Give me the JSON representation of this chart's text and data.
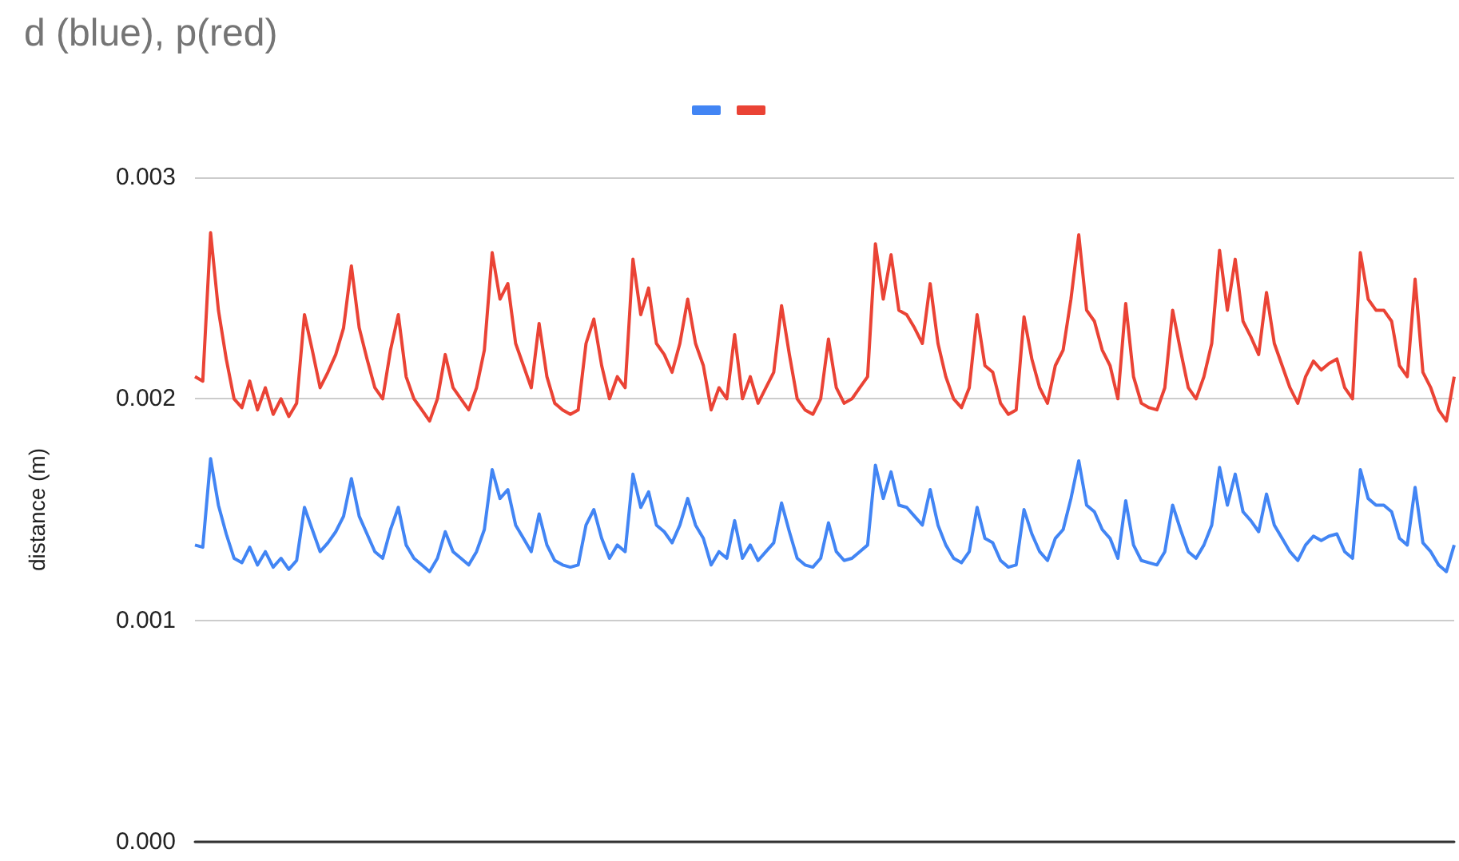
{
  "chart_data": {
    "type": "line",
    "title": "d (blue), p(red)",
    "ylabel": "distance (m)",
    "categories": [
      null,
      null,
      null,
      null,
      null,
      null,
      null,
      null,
      null,
      null,
      null,
      null,
      null,
      null,
      null,
      null,
      null,
      null,
      null,
      null,
      null,
      null,
      null,
      null,
      null,
      null,
      null,
      null,
      null,
      null,
      null,
      null,
      null,
      null,
      null,
      null,
      null,
      null,
      null,
      null,
      null,
      null,
      null,
      null,
      null,
      null,
      null,
      null,
      null,
      null,
      null,
      null,
      null,
      null,
      null,
      null,
      null,
      null,
      null,
      null,
      null,
      null,
      null,
      null,
      null,
      null,
      null,
      null,
      null,
      null,
      null,
      null,
      null,
      null,
      null,
      null,
      null,
      null,
      null,
      null,
      null,
      null,
      null,
      null,
      null,
      null,
      null,
      null,
      null,
      null,
      null,
      null,
      null,
      null,
      null,
      null,
      null,
      null,
      null,
      null,
      null,
      null,
      null,
      null,
      null,
      null,
      null,
      null,
      null,
      null,
      null,
      null,
      null,
      null,
      null,
      null,
      null,
      null,
      null,
      null,
      null,
      null,
      null,
      null,
      null,
      null,
      null,
      null,
      null,
      null,
      null,
      null,
      null,
      null,
      null,
      null,
      null,
      null,
      null,
      null,
      null,
      null,
      null,
      null,
      null,
      null,
      null,
      null,
      null,
      null,
      null,
      null,
      null,
      null,
      null,
      null,
      null,
      null,
      null,
      null,
      null,
      null
    ],
    "series": [
      {
        "color": "#4285f4",
        "values": [
          0.00134,
          0.00133,
          0.00173,
          0.00152,
          0.00139,
          0.00128,
          0.00126,
          0.00133,
          0.00125,
          0.00131,
          0.00124,
          0.00128,
          0.00123,
          0.00127,
          0.00151,
          0.00141,
          0.00131,
          0.00135,
          0.0014,
          0.00147,
          0.00164,
          0.00147,
          0.00139,
          0.00131,
          0.00128,
          0.00141,
          0.00151,
          0.00134,
          0.00128,
          0.00125,
          0.00122,
          0.00128,
          0.0014,
          0.00131,
          0.00128,
          0.00125,
          0.00131,
          0.00141,
          0.00168,
          0.00155,
          0.00159,
          0.00143,
          0.00137,
          0.00131,
          0.00148,
          0.00134,
          0.00127,
          0.00125,
          0.00124,
          0.00125,
          0.00143,
          0.0015,
          0.00137,
          0.00128,
          0.00134,
          0.00131,
          0.00166,
          0.00151,
          0.00158,
          0.00143,
          0.0014,
          0.00135,
          0.00143,
          0.00155,
          0.00143,
          0.00137,
          0.00125,
          0.00131,
          0.00128,
          0.00145,
          0.00128,
          0.00134,
          0.00127,
          0.00131,
          0.00135,
          0.00153,
          0.0014,
          0.00128,
          0.00125,
          0.00124,
          0.00128,
          0.00144,
          0.00131,
          0.00127,
          0.00128,
          0.00131,
          0.00134,
          0.0017,
          0.00155,
          0.00167,
          0.00152,
          0.00151,
          0.00147,
          0.00143,
          0.00159,
          0.00143,
          0.00134,
          0.00128,
          0.00126,
          0.00131,
          0.00151,
          0.00137,
          0.00135,
          0.00127,
          0.00124,
          0.00125,
          0.0015,
          0.00139,
          0.00131,
          0.00127,
          0.00137,
          0.00141,
          0.00155,
          0.00172,
          0.00152,
          0.00149,
          0.00141,
          0.00137,
          0.00128,
          0.00154,
          0.00134,
          0.00127,
          0.00126,
          0.00125,
          0.00131,
          0.00152,
          0.00141,
          0.00131,
          0.00128,
          0.00134,
          0.00143,
          0.00169,
          0.00152,
          0.00166,
          0.00149,
          0.00145,
          0.0014,
          0.00157,
          0.00143,
          0.00137,
          0.00131,
          0.00127,
          0.00134,
          0.00138,
          0.00136,
          0.00138,
          0.00139,
          0.00131,
          0.00128,
          0.00168,
          0.00155,
          0.00152,
          0.00152,
          0.00149,
          0.00137,
          0.00134,
          0.0016,
          0.00135,
          0.00131,
          0.00125,
          0.00122,
          0.00134
        ]
      },
      {
        "color": "#ea4335",
        "values": [
          0.0021,
          0.00208,
          0.00275,
          0.0024,
          0.00218,
          0.002,
          0.00196,
          0.00208,
          0.00195,
          0.00205,
          0.00193,
          0.002,
          0.00192,
          0.00198,
          0.00238,
          0.00222,
          0.00205,
          0.00212,
          0.0022,
          0.00232,
          0.0026,
          0.00232,
          0.00218,
          0.00205,
          0.002,
          0.00222,
          0.00238,
          0.0021,
          0.002,
          0.00195,
          0.0019,
          0.002,
          0.0022,
          0.00205,
          0.002,
          0.00195,
          0.00205,
          0.00222,
          0.00266,
          0.00245,
          0.00252,
          0.00225,
          0.00215,
          0.00205,
          0.00234,
          0.0021,
          0.00198,
          0.00195,
          0.00193,
          0.00195,
          0.00225,
          0.00236,
          0.00215,
          0.002,
          0.0021,
          0.00205,
          0.00263,
          0.00238,
          0.0025,
          0.00225,
          0.0022,
          0.00212,
          0.00225,
          0.00245,
          0.00225,
          0.00215,
          0.00195,
          0.00205,
          0.002,
          0.00229,
          0.002,
          0.0021,
          0.00198,
          0.00205,
          0.00212,
          0.00242,
          0.0022,
          0.002,
          0.00195,
          0.00193,
          0.002,
          0.00227,
          0.00205,
          0.00198,
          0.002,
          0.00205,
          0.0021,
          0.0027,
          0.00245,
          0.00265,
          0.0024,
          0.00238,
          0.00232,
          0.00225,
          0.00252,
          0.00225,
          0.0021,
          0.002,
          0.00196,
          0.00205,
          0.00238,
          0.00215,
          0.00212,
          0.00198,
          0.00193,
          0.00195,
          0.00237,
          0.00218,
          0.00205,
          0.00198,
          0.00215,
          0.00222,
          0.00245,
          0.00274,
          0.0024,
          0.00235,
          0.00222,
          0.00215,
          0.002,
          0.00243,
          0.0021,
          0.00198,
          0.00196,
          0.00195,
          0.00205,
          0.0024,
          0.00222,
          0.00205,
          0.002,
          0.0021,
          0.00225,
          0.00267,
          0.0024,
          0.00263,
          0.00235,
          0.00228,
          0.0022,
          0.00248,
          0.00225,
          0.00215,
          0.00205,
          0.00198,
          0.0021,
          0.00217,
          0.00213,
          0.00216,
          0.00218,
          0.00205,
          0.002,
          0.00266,
          0.00245,
          0.0024,
          0.0024,
          0.00235,
          0.00215,
          0.0021,
          0.00254,
          0.00212,
          0.00205,
          0.00195,
          0.0019,
          0.0021
        ]
      }
    ],
    "ylim": [
      0,
      0.003
    ],
    "yticks": [
      {
        "value": 0,
        "label": "0.000"
      },
      {
        "value": 0.001,
        "label": "0.001"
      },
      {
        "value": 0.002,
        "label": "0.002"
      },
      {
        "value": 0.003,
        "label": "0.003"
      }
    ],
    "grid": "y",
    "marker": "none",
    "line_style": "solid"
  }
}
